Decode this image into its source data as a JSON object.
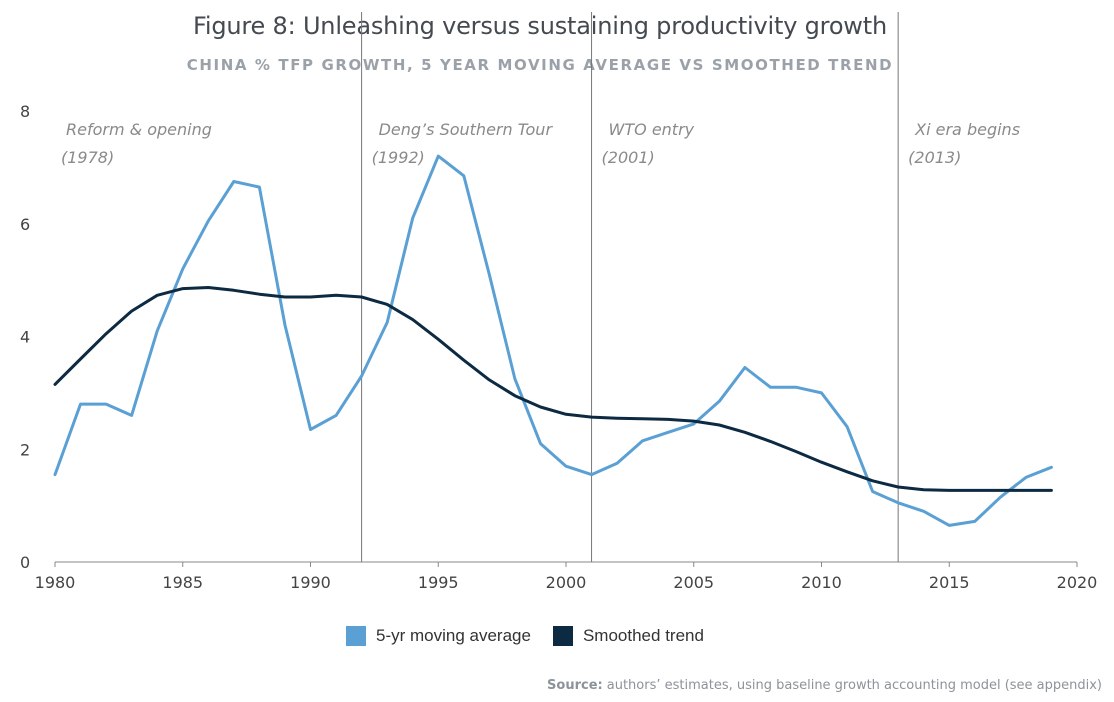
{
  "title": "Figure 8: Unleashing versus sustaining productivity growth",
  "subtitle": "CHINA % TFP GROWTH, 5 YEAR MOVING AVERAGE VS SMOOTHED TREND",
  "source_label": "Source:",
  "source_text": "authors’ estimates, using baseline growth accounting model (see appendix)",
  "colors": {
    "moving_average": "#5aa0d4",
    "smoothed_trend": "#0d2a43",
    "axis": "#888888",
    "vline": "#777777",
    "annotation": "#8a8a8a",
    "tick_text": "#444444"
  },
  "chart_data": {
    "type": "line",
    "xlim": [
      1980,
      2020
    ],
    "ylim": [
      0,
      8
    ],
    "xticks": [
      1980,
      1985,
      1990,
      1995,
      2000,
      2005,
      2010,
      2015,
      2020
    ],
    "yticks": [
      0,
      2,
      4,
      6,
      8
    ],
    "grid": false,
    "legend_position": "bottom-center",
    "series": [
      {
        "name": "5-yr moving average",
        "color": "#5aa0d4",
        "x": [
          1980,
          1981,
          1982,
          1983,
          1984,
          1985,
          1986,
          1987,
          1988,
          1989,
          1990,
          1991,
          1992,
          1993,
          1994,
          1995,
          1996,
          1997,
          1998,
          1999,
          2000,
          2001,
          2002,
          2003,
          2004,
          2005,
          2006,
          2007,
          2008,
          2009,
          2010,
          2011,
          2012,
          2013,
          2014,
          2015,
          2016,
          2017,
          2018,
          2019
        ],
        "y": [
          1.55,
          2.8,
          2.8,
          2.6,
          4.1,
          5.2,
          6.05,
          6.75,
          6.65,
          4.2,
          2.35,
          2.6,
          3.3,
          4.25,
          6.1,
          7.2,
          6.85,
          5.1,
          3.25,
          2.1,
          1.7,
          1.55,
          1.75,
          2.15,
          2.3,
          2.45,
          2.85,
          3.45,
          3.1,
          3.1,
          3.0,
          2.4,
          1.25,
          1.05,
          0.9,
          0.65,
          0.72,
          1.15,
          1.5,
          1.68
        ]
      },
      {
        "name": "Smoothed trend",
        "color": "#0d2a43",
        "x": [
          1980,
          1981,
          1982,
          1983,
          1984,
          1985,
          1986,
          1987,
          1988,
          1989,
          1990,
          1991,
          1992,
          1993,
          1994,
          1995,
          1996,
          1997,
          1998,
          1999,
          2000,
          2001,
          2002,
          2003,
          2004,
          2005,
          2006,
          2007,
          2008,
          2009,
          2010,
          2011,
          2012,
          2013,
          2014,
          2015,
          2016,
          2017,
          2018,
          2019
        ],
        "y": [
          3.15,
          3.6,
          4.05,
          4.45,
          4.73,
          4.85,
          4.87,
          4.82,
          4.75,
          4.7,
          4.7,
          4.73,
          4.7,
          4.57,
          4.3,
          3.95,
          3.58,
          3.23,
          2.95,
          2.75,
          2.62,
          2.57,
          2.55,
          2.54,
          2.53,
          2.5,
          2.43,
          2.3,
          2.14,
          1.96,
          1.77,
          1.6,
          1.44,
          1.33,
          1.28,
          1.27,
          1.27,
          1.27,
          1.27,
          1.27
        ]
      }
    ],
    "vlines": [
      1992,
      2001,
      2013
    ],
    "annotations": [
      {
        "year": 1978,
        "lines": [
          "Reform & opening",
          "(1978)"
        ]
      },
      {
        "year": 1992,
        "lines": [
          "Deng’s Southern Tour",
          "(1992)"
        ]
      },
      {
        "year": 2001,
        "lines": [
          "WTO entry",
          "(2001)"
        ]
      },
      {
        "year": 2013,
        "lines": [
          "Xi era begins",
          "(2013)"
        ]
      }
    ]
  }
}
